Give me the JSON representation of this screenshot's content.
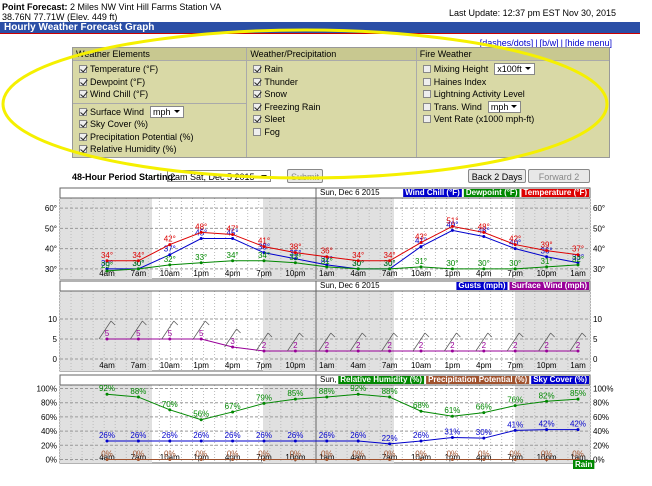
{
  "header": {
    "label": "Point Forecast:",
    "location": "2 Miles NW Vint Hill Farms Station VA",
    "coords": "38.76N 77.71W (Elev. 449 ft)",
    "update": "Last Update: 12:37 pm EST Nov 30, 2015"
  },
  "title_bar": "Hourly Weather Forecast Graph",
  "links": [
    "[dashes/dots]",
    "|",
    "[b/w]",
    "|",
    "[hide menu]"
  ],
  "options": {
    "columns": [
      {
        "heading": "Weather Elements",
        "groups": [
          [
            {
              "label": "Temperature (°F)",
              "checked": true
            },
            {
              "label": "Dewpoint (°F)",
              "checked": true
            },
            {
              "label": "Wind Chill (°F)",
              "checked": true
            }
          ],
          [
            {
              "label": "Surface Wind",
              "checked": true,
              "select": "mph"
            },
            {
              "label": "Sky Cover (%)",
              "checked": true
            },
            {
              "label": "Precipitation Potential (%)",
              "checked": true
            },
            {
              "label": "Relative Humidity (%)",
              "checked": true
            }
          ]
        ]
      },
      {
        "heading": "Weather/Precipitation",
        "groups": [
          [
            {
              "label": "Rain",
              "checked": true
            },
            {
              "label": "Thunder",
              "checked": true
            },
            {
              "label": "Snow",
              "checked": true
            },
            {
              "label": "Freezing Rain",
              "checked": true
            },
            {
              "label": "Sleet",
              "checked": true
            },
            {
              "label": "Fog",
              "checked": false
            }
          ]
        ]
      },
      {
        "heading": "Fire Weather",
        "groups": [
          [
            {
              "label": "Mixing Height",
              "checked": false,
              "select": "x100ft"
            },
            {
              "label": "Haines Index",
              "checked": false
            },
            {
              "label": "Lightning Activity Level",
              "checked": false
            },
            {
              "label": "Trans. Wind",
              "checked": false,
              "select": "mph"
            },
            {
              "label": "Vent Rate (x1000 mph-ft)",
              "checked": false
            }
          ]
        ]
      }
    ]
  },
  "period": {
    "label": "48-Hour Period Starting:",
    "select": "2am Sat, Dec 5 2015",
    "submit": "Submit",
    "back": "Back 2 Days",
    "forward": "Forward 2 Days"
  },
  "graphs": [
    {
      "title": "Sun, Dec 6 2015",
      "categories": [
        "4am",
        "7am",
        "10am",
        "1pm",
        "4pm",
        "7pm",
        "10pm",
        "1am",
        "4am",
        "7am",
        "10am",
        "1pm",
        "4pm",
        "7pm",
        "10pm",
        "1am"
      ],
      "ylim": [
        25,
        65
      ],
      "yticks": [
        {
          "value": 60,
          "label": "60°"
        },
        {
          "value": 50,
          "label": "50°"
        },
        {
          "value": 40,
          "label": "40°"
        },
        {
          "value": 30,
          "label": "30°"
        }
      ],
      "series": [
        {
          "name": "Wind Chill (°F)",
          "color": "#0000cc",
          "values": [
            30,
            30,
            37,
            45,
            45,
            38,
            35,
            32,
            30,
            30,
            41,
            49,
            46,
            40,
            36,
            33
          ],
          "value_labels": [
            "30°",
            "30°",
            "37°",
            "45°",
            "45°",
            "38°",
            "35°",
            "32°",
            "30°",
            "30°",
            "41°",
            "49°",
            "46°",
            "40°",
            "36°",
            "33°"
          ]
        },
        {
          "name": "Dewpoint (°F)",
          "color": "#008800",
          "values": [
            29,
            30,
            32,
            33,
            34,
            34,
            33,
            31,
            30,
            30,
            31,
            30,
            30,
            30,
            31,
            32
          ],
          "value_labels": [
            "29°",
            "30°",
            "32°",
            "33°",
            "34°",
            "34°",
            "33°",
            "31°",
            "30°",
            "30°",
            "31°",
            "30°",
            "30°",
            "30°",
            "31°",
            "32°"
          ]
        },
        {
          "name": "Temperature (°F)",
          "color": "#dd0000",
          "values": [
            34,
            34,
            42,
            48,
            47,
            41,
            38,
            36,
            34,
            34,
            43,
            51,
            48,
            42,
            39,
            37
          ],
          "value_labels": [
            "34°",
            "34°",
            "42°",
            "48°",
            "47°",
            "41°",
            "38°",
            "36°",
            "34°",
            "34°",
            "43°",
            "51°",
            "48°",
            "42°",
            "39°",
            "37°"
          ]
        }
      ]
    },
    {
      "title": "Sun, Dec 6 2015",
      "categories": [
        "4am",
        "7am",
        "10am",
        "1pm",
        "4pm",
        "7pm",
        "10pm",
        "1am",
        "4am",
        "7am",
        "10am",
        "1pm",
        "4pm",
        "7pm",
        "10pm",
        "1am"
      ],
      "ylim": [
        -3,
        17
      ],
      "yticks": [
        10,
        5,
        0
      ],
      "series": [
        {
          "name": "Gusts (mph)",
          "color": "#0000cc"
        },
        {
          "name": "Surface Wind (mph)",
          "color": "#990099",
          "values": [
            5,
            5,
            5,
            5,
            3,
            2,
            2,
            2,
            2,
            2,
            2,
            2,
            2,
            2,
            2,
            2
          ]
        }
      ]
    },
    {
      "title": "Sun, Dec 6 2015",
      "categories": [
        "4am",
        "7am",
        "10am",
        "1pm",
        "4pm",
        "7pm",
        "10pm",
        "1am",
        "4am",
        "7am",
        "10am",
        "1pm",
        "4pm",
        "7pm",
        "10pm",
        "1am"
      ],
      "ylim": [
        -5,
        105
      ],
      "yticks": [
        {
          "value": 100,
          "label": "100%"
        },
        {
          "value": 80,
          "label": "80%"
        },
        {
          "value": 60,
          "label": "60%"
        },
        {
          "value": 40,
          "label": "40%"
        },
        {
          "value": 20,
          "label": "20%"
        },
        {
          "value": 0,
          "label": "0%"
        }
      ],
      "series": [
        {
          "name": "Relative Humidity (%)",
          "color": "#008800",
          "values": [
            92,
            88,
            70,
            56,
            67,
            79,
            85,
            88,
            92,
            88,
            68,
            61,
            66,
            76,
            82,
            85
          ],
          "value_labels": [
            "92%",
            "88%",
            "70%",
            "56%",
            "67%",
            "79%",
            "85%",
            "88%",
            "92%",
            "88%",
            "68%",
            "61%",
            "66%",
            "76%",
            "82%",
            "85%"
          ]
        },
        {
          "name": "Precipitation Potential (%)",
          "color": "#a0522d",
          "values": [
            0,
            0,
            0,
            0,
            0,
            0,
            0,
            0,
            0,
            0,
            0,
            0,
            0,
            0,
            0,
            0
          ],
          "value_labels": [
            "0%",
            "0%",
            "0%",
            "0%",
            "0%",
            "0%",
            "0%",
            "0%",
            "0%",
            "0%",
            "0%",
            "0%",
            "0%",
            "0%",
            "0%",
            "0%"
          ]
        },
        {
          "name": "Sky Cover (%)",
          "color": "#0000cc",
          "values": [
            26,
            26,
            26,
            26,
            26,
            26,
            26,
            26,
            26,
            22,
            26,
            31,
            30,
            41,
            42,
            42
          ],
          "value_labels": [
            "26%",
            "26%",
            "26%",
            "26%",
            "26%",
            "26%",
            "26%",
            "26%",
            "26%",
            "22%",
            "26%",
            "31%",
            "30%",
            "41%",
            "42%",
            "42%"
          ]
        }
      ]
    }
  ],
  "weather_label": "Rain"
}
